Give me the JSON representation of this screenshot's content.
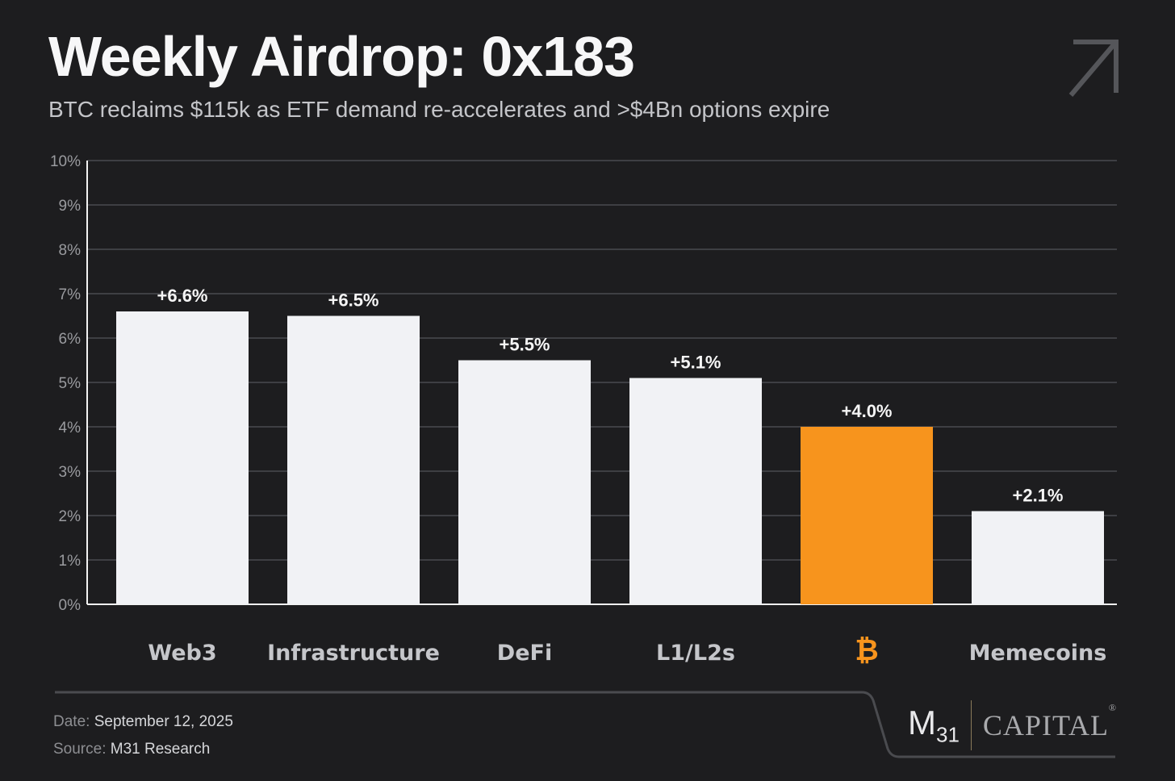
{
  "header": {
    "title": "Weekly Airdrop: 0x183",
    "subtitle": "BTC reclaims $115k as ETF demand re-accelerates and >$4Bn options expire",
    "icon": "arrow-up-right-icon"
  },
  "chart_data": {
    "type": "bar",
    "title": "Weekly Airdrop: 0x183",
    "categories": [
      "Web3",
      "Infrastructure",
      "DeFi",
      "L1/L2s",
      "₿",
      "Memecoins"
    ],
    "values": [
      6.6,
      6.5,
      5.5,
      5.1,
      4.0,
      2.1
    ],
    "data_labels": [
      "+6.6%",
      "+6.5%",
      "+5.5%",
      "+5.1%",
      "+4.0%",
      "+2.1%"
    ],
    "colors": [
      "#f1f2f5",
      "#f1f2f5",
      "#f1f2f5",
      "#f1f2f5",
      "#f7941d",
      "#f1f2f5"
    ],
    "yticks": [
      "0%",
      "1%",
      "2%",
      "3%",
      "4%",
      "5%",
      "6%",
      "7%",
      "8%",
      "9%",
      "10%"
    ],
    "ylim": [
      0,
      10
    ],
    "xlabel": "",
    "ylabel": "",
    "grid": true
  },
  "footer": {
    "date_label": "Date:",
    "date": "September 12, 2025",
    "source_label": "Source:",
    "source": "M31 Research"
  },
  "logo": {
    "m": "M",
    "sub": "31",
    "capital": "CAPITAL",
    "reg": "®"
  }
}
